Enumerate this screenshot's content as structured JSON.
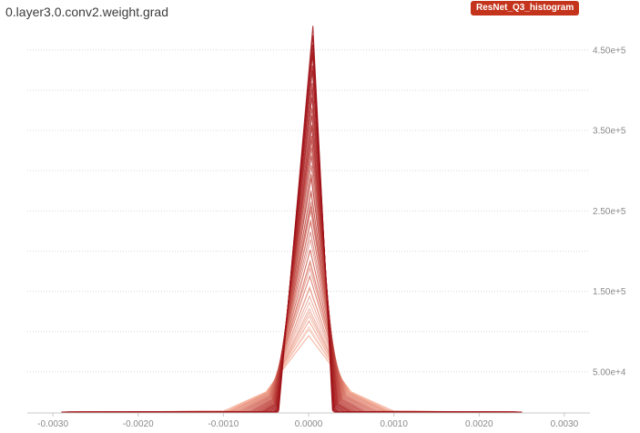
{
  "header": {
    "title": "0.layer3.0.conv2.weight.grad",
    "run_label": "ResNet_Q3_histogram",
    "run_color": "#c4341c"
  },
  "chart_data": {
    "type": "line",
    "title": "0.layer3.0.conv2.weight.grad",
    "xlabel": "",
    "ylabel": "",
    "x_ticks": [
      -0.003,
      -0.002,
      -0.001,
      0.0,
      0.001,
      0.002,
      0.003
    ],
    "x_tick_labels": [
      "-0.0030",
      "-0.0020",
      "-0.0010",
      "0.0000",
      "0.0010",
      "0.0020",
      "0.0030"
    ],
    "y_ticks": [
      50000,
      150000,
      250000,
      350000,
      450000
    ],
    "y_tick_labels": [
      "5.00e+4",
      "1.50e+5",
      "2.50e+5",
      "3.50e+5",
      "4.50e+5"
    ],
    "xlim": [
      -0.0033,
      0.0033
    ],
    "ylim": [
      0,
      485000
    ],
    "grid": true,
    "grid_style": "dotted",
    "y_axis_side": "right",
    "color_early": "#f6a58a",
    "color_late": "#9e1016",
    "series_count": 50,
    "series": [
      {
        "step": "first",
        "x": [
          -0.0029,
          -0.001,
          -0.0005,
          0.0,
          0.0005,
          0.001,
          0.0025
        ],
        "values": [
          0,
          1000,
          25000,
          95000,
          25000,
          1000,
          0
        ]
      },
      {
        "step": "last",
        "x": [
          -0.0029,
          -0.00036,
          -0.00035,
          5e-05,
          0.00028,
          0.0003,
          0.0025
        ],
        "values": [
          0,
          0,
          2000,
          480000,
          2000,
          0,
          0
        ]
      }
    ]
  }
}
